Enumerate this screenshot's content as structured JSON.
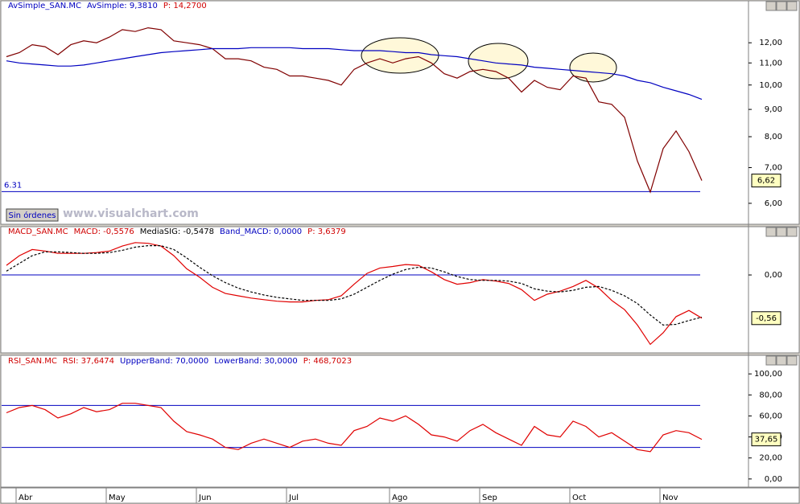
{
  "ui": {
    "button": "Sin órdenes",
    "watermark": "www.visualchart.com"
  },
  "chart_data": [
    {
      "type": "line",
      "log_scale": true,
      "legend": [
        {
          "text": "AvSimple_SAN.MC",
          "color": "#0000c0"
        },
        {
          "text": "AvSimple: 9,3810",
          "color": "#0000c0"
        },
        {
          "text": "P: 14,2700",
          "color": "#d00000"
        }
      ],
      "ylim": [
        5.5,
        13.75
      ],
      "yticks": [
        {
          "value": 6,
          "label": "6,00"
        },
        {
          "value": 7,
          "label": "7,00"
        },
        {
          "value": 8,
          "label": "8,00"
        },
        {
          "value": 9,
          "label": "9,00"
        },
        {
          "value": 10,
          "label": "10,00"
        },
        {
          "value": 11,
          "label": "11,00"
        },
        {
          "value": 12,
          "label": "12,00"
        }
      ],
      "hlines": [
        {
          "value": 6.31,
          "label": "6.31",
          "color": "#0000c0"
        }
      ],
      "last_value": {
        "value": 6.62,
        "label": "6,62"
      },
      "series": [
        {
          "name": "SAN.MC",
          "color": "#800000",
          "values": [
            11.3,
            11.5,
            11.9,
            11.8,
            11.4,
            11.9,
            12.1,
            12.0,
            12.3,
            12.7,
            12.6,
            12.8,
            12.7,
            12.1,
            12.0,
            11.9,
            11.7,
            11.2,
            11.2,
            11.1,
            10.8,
            10.7,
            10.4,
            10.4,
            10.3,
            10.2,
            10.0,
            10.7,
            11.0,
            11.2,
            11.0,
            11.2,
            11.3,
            11.0,
            10.5,
            10.3,
            10.6,
            10.7,
            10.6,
            10.3,
            9.7,
            10.2,
            9.9,
            9.8,
            10.4,
            10.3,
            9.3,
            9.2,
            8.7,
            7.2,
            6.3,
            7.6,
            8.2,
            7.5,
            6.62
          ]
        },
        {
          "name": "AvSimple",
          "color": "#0000c0",
          "values": [
            11.1,
            11.0,
            10.95,
            10.9,
            10.85,
            10.85,
            10.9,
            11.0,
            11.1,
            11.2,
            11.3,
            11.4,
            11.5,
            11.55,
            11.6,
            11.65,
            11.7,
            11.7,
            11.7,
            11.75,
            11.75,
            11.75,
            11.75,
            11.7,
            11.7,
            11.7,
            11.65,
            11.6,
            11.6,
            11.6,
            11.55,
            11.5,
            11.5,
            11.4,
            11.35,
            11.3,
            11.2,
            11.1,
            11.0,
            10.95,
            10.9,
            10.8,
            10.75,
            10.7,
            10.65,
            10.6,
            10.55,
            10.5,
            10.4,
            10.2,
            10.1,
            9.9,
            9.75,
            9.6,
            9.4
          ]
        }
      ]
    },
    {
      "type": "line",
      "legend": [
        {
          "text": "MACD_SAN.MC",
          "color": "#d00000"
        },
        {
          "text": "MACD: -0,5576",
          "color": "#d00000"
        },
        {
          "text": "MediaSIG: -0,5478",
          "color": "#000000"
        },
        {
          "text": "Band_MACD: 0,0000",
          "color": "#0000c0"
        },
        {
          "text": "P: 3,6379",
          "color": "#d00000"
        }
      ],
      "ylim": [
        -1.0,
        0.48
      ],
      "yticks": [
        {
          "value": 0,
          "label": "0,00"
        }
      ],
      "hlines": [
        {
          "value": 0,
          "color": "#0000c0"
        }
      ],
      "last_value": {
        "value": -0.56,
        "label": "-0,56"
      },
      "series": [
        {
          "name": "MACD",
          "color": "#e00000",
          "values": [
            0.125,
            0.25,
            0.33,
            0.31,
            0.28,
            0.28,
            0.28,
            0.29,
            0.31,
            0.375,
            0.42,
            0.41,
            0.375,
            0.25,
            0.08,
            -0.03,
            -0.16,
            -0.24,
            -0.27,
            -0.3,
            -0.32,
            -0.34,
            -0.35,
            -0.35,
            -0.33,
            -0.32,
            -0.27,
            -0.12,
            0.02,
            0.09,
            0.11,
            0.135,
            0.125,
            0.04,
            -0.06,
            -0.12,
            -0.1,
            -0.06,
            -0.08,
            -0.11,
            -0.19,
            -0.33,
            -0.25,
            -0.21,
            -0.15,
            -0.07,
            -0.17,
            -0.33,
            -0.45,
            -0.65,
            -0.9,
            -0.75,
            -0.54,
            -0.46,
            -0.56
          ]
        },
        {
          "name": "MediaSIG",
          "color": "#000000",
          "dash": true,
          "values": [
            0.05,
            0.15,
            0.25,
            0.3,
            0.3,
            0.29,
            0.28,
            0.28,
            0.29,
            0.32,
            0.36,
            0.38,
            0.38,
            0.33,
            0.22,
            0.1,
            -0.01,
            -0.1,
            -0.17,
            -0.22,
            -0.26,
            -0.29,
            -0.31,
            -0.33,
            -0.33,
            -0.33,
            -0.31,
            -0.25,
            -0.16,
            -0.07,
            0.01,
            0.07,
            0.1,
            0.09,
            0.04,
            -0.02,
            -0.06,
            -0.07,
            -0.07,
            -0.08,
            -0.11,
            -0.18,
            -0.21,
            -0.22,
            -0.2,
            -0.16,
            -0.15,
            -0.2,
            -0.27,
            -0.37,
            -0.52,
            -0.65,
            -0.64,
            -0.59,
            -0.5478
          ]
        }
      ]
    },
    {
      "type": "line",
      "legend": [
        {
          "text": "RSI_SAN.MC",
          "color": "#d00000"
        },
        {
          "text": "RSI: 37,6474",
          "color": "#d00000"
        },
        {
          "text": "UppperBand: 70,0000",
          "color": "#0000c0"
        },
        {
          "text": "LowerBand: 30,0000",
          "color": "#0000c0"
        },
        {
          "text": "P: 468,7023",
          "color": "#d00000"
        }
      ],
      "ylim": [
        -7,
        107
      ],
      "yticks": [
        {
          "value": 0,
          "label": "0,00"
        },
        {
          "value": 20,
          "label": "20,00"
        },
        {
          "value": 40,
          "label": "40,00"
        },
        {
          "value": 60,
          "label": "60,00"
        },
        {
          "value": 80,
          "label": "80,00"
        },
        {
          "value": 100,
          "label": "100,00"
        }
      ],
      "hlines": [
        {
          "value": 70,
          "color": "#0000c0"
        },
        {
          "value": 30,
          "color": "#0000c0"
        }
      ],
      "last_value": {
        "value": 37.65,
        "label": "37,65"
      },
      "categories": [
        null,
        "Abr",
        null,
        null,
        null,
        null,
        null,
        null,
        "May",
        null,
        null,
        null,
        null,
        null,
        null,
        "Jun",
        null,
        null,
        null,
        null,
        null,
        null,
        "Jul",
        null,
        null,
        null,
        null,
        null,
        null,
        null,
        "Ago",
        null,
        null,
        null,
        null,
        null,
        null,
        "Sep",
        null,
        null,
        null,
        null,
        null,
        null,
        "Oct",
        null,
        null,
        null,
        null,
        null,
        null,
        "Nov",
        null,
        null,
        null
      ],
      "series": [
        {
          "name": "RSI",
          "color": "#e00000",
          "values": [
            63,
            68,
            70,
            66,
            58,
            62,
            68,
            64,
            66,
            72,
            72,
            70,
            68,
            55,
            45,
            42,
            38,
            30,
            28,
            34,
            38,
            34,
            30,
            36,
            38,
            34,
            32,
            46,
            50,
            58,
            55,
            60,
            52,
            42,
            40,
            36,
            46,
            52,
            44,
            38,
            32,
            50,
            42,
            40,
            55,
            50,
            40,
            44,
            36,
            28,
            26,
            42,
            46,
            44,
            37.65
          ]
        }
      ]
    }
  ]
}
